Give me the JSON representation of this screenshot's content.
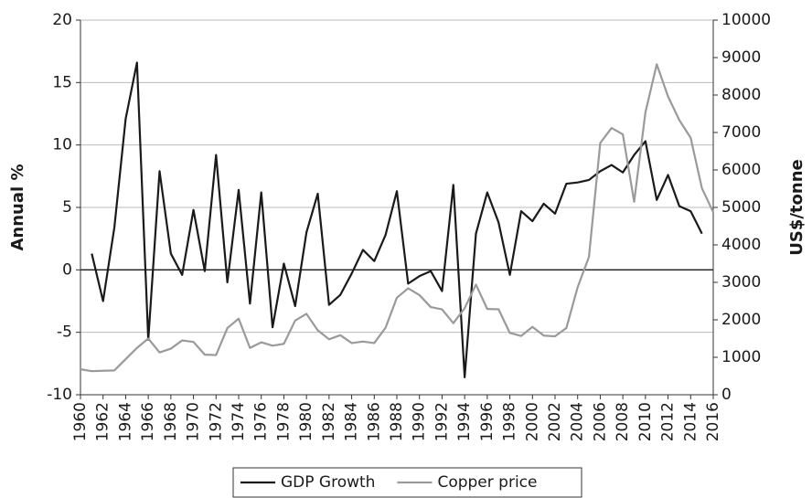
{
  "chart_data": {
    "type": "line",
    "x": [
      1960,
      1961,
      1962,
      1963,
      1964,
      1965,
      1966,
      1967,
      1968,
      1969,
      1970,
      1971,
      1972,
      1973,
      1974,
      1975,
      1976,
      1977,
      1978,
      1979,
      1980,
      1981,
      1982,
      1983,
      1984,
      1985,
      1986,
      1987,
      1988,
      1989,
      1990,
      1991,
      1992,
      1993,
      1994,
      1995,
      1996,
      1997,
      1998,
      1999,
      2000,
      2001,
      2002,
      2003,
      2004,
      2005,
      2006,
      2007,
      2008,
      2009,
      2010,
      2011,
      2012,
      2013,
      2014,
      2015,
      2016
    ],
    "series": [
      {
        "name": "GDP Growth",
        "color": "#1a1a1a",
        "axis": "y",
        "values": [
          null,
          1.3,
          -2.5,
          3.4,
          12.1,
          16.6,
          -5.6,
          7.9,
          1.3,
          -0.4,
          4.8,
          -0.1,
          9.2,
          -1.0,
          6.4,
          -2.7,
          6.2,
          -4.6,
          0.5,
          -2.9,
          3.0,
          6.1,
          -2.8,
          -2.0,
          -0.3,
          1.6,
          0.7,
          2.8,
          6.3,
          -1.1,
          -0.5,
          -0.1,
          -1.7,
          6.8,
          -8.6,
          2.9,
          6.2,
          3.8,
          -0.4,
          4.7,
          3.9,
          5.3,
          4.5,
          6.9,
          7.0,
          7.2,
          7.9,
          8.4,
          7.8,
          9.2,
          10.3,
          5.6,
          7.6,
          5.1,
          4.7,
          2.9,
          null
        ]
      },
      {
        "name": "Copper price",
        "color": "#9a9a9a",
        "axis": "y2",
        "values": [
          680,
          630,
          640,
          650,
          950,
          1250,
          1500,
          1130,
          1230,
          1450,
          1410,
          1070,
          1060,
          1780,
          2030,
          1250,
          1400,
          1310,
          1360,
          1980,
          2160,
          1720,
          1480,
          1590,
          1380,
          1420,
          1380,
          1790,
          2590,
          2840,
          2660,
          2340,
          2280,
          1910,
          2310,
          2940,
          2290,
          2280,
          1650,
          1570,
          1810,
          1580,
          1560,
          1780,
          2870,
          3680,
          6720,
          7120,
          6950,
          5150,
          7540,
          8820,
          7960,
          7330,
          6860,
          5510,
          4870
        ]
      }
    ],
    "xlim": [
      1960,
      2016
    ],
    "xticks": [
      1960,
      1962,
      1964,
      1966,
      1968,
      1970,
      1972,
      1974,
      1976,
      1978,
      1980,
      1982,
      1984,
      1986,
      1988,
      1990,
      1992,
      1994,
      1996,
      1998,
      2000,
      2002,
      2004,
      2006,
      2008,
      2010,
      2012,
      2014,
      2016
    ],
    "ylim": [
      -10,
      20
    ],
    "yticks": [
      -10,
      -5,
      0,
      5,
      10,
      15,
      20
    ],
    "y2lim": [
      0,
      10000
    ],
    "y2ticks": [
      0,
      1000,
      2000,
      3000,
      4000,
      5000,
      6000,
      7000,
      8000,
      9000,
      10000
    ],
    "ylabel": "Annual %",
    "y2label": "US$/tonne",
    "grid": true,
    "legend": "bottom"
  }
}
